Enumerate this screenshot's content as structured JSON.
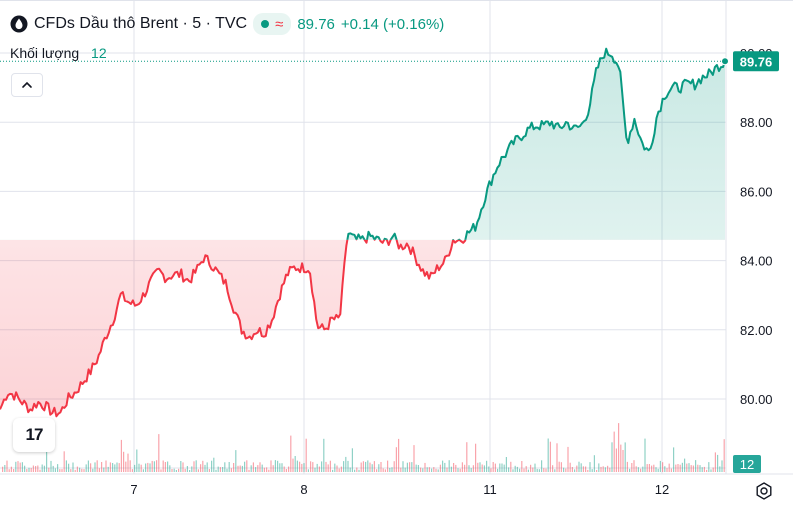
{
  "header": {
    "symbol_title": "CFDs Dầu thô Brent · 5 · TVC",
    "last_price": "89.76",
    "change": "+0.14 (+0.16%)",
    "status_color": "#089981",
    "wave_icon": "≈"
  },
  "volume_legend": {
    "label": "Khối lượng",
    "value": "12"
  },
  "price_axis": {
    "last_price_tag": "89.76",
    "volume_tag": "12",
    "labels": [
      "80.00",
      "82.00",
      "84.00",
      "86.00",
      "88.00",
      "90.00"
    ]
  },
  "time_axis": {
    "labels": [
      "7",
      "8",
      "11",
      "12"
    ]
  },
  "logo_text": "17",
  "colors": {
    "up": "#089981",
    "down": "#f23645",
    "grid": "#e0e3eb",
    "text": "#131722"
  },
  "chart_data": {
    "type": "line",
    "title": "CFDs Dầu thô Brent · 5 · TVC",
    "ylim": [
      78.9,
      90.3
    ],
    "baseline": 84.6,
    "last_value": 89.76,
    "x_ticks": [
      "7",
      "8",
      "11",
      "12"
    ],
    "y_ticks": [
      80,
      82,
      84,
      86,
      88,
      90
    ],
    "series": [
      {
        "values": [
          79.7,
          80.2,
          80.1,
          79.9,
          79.7,
          79.9,
          79.8,
          79.6,
          79.6,
          80.0,
          80.2,
          80.5,
          80.8,
          81.2,
          81.8,
          82.3,
          83.0,
          82.8,
          82.7,
          83.0,
          83.4,
          83.7,
          83.5,
          83.6,
          83.6,
          83.4,
          83.7,
          84.1,
          83.9,
          83.6,
          83.3,
          82.6,
          82.0,
          81.8,
          82.0,
          81.9,
          82.3,
          83.0,
          83.6,
          83.8,
          83.8,
          83.8,
          82.1,
          82.0,
          82.3,
          82.3,
          84.8,
          84.6,
          84.6,
          84.7,
          84.6,
          84.5,
          84.7,
          84.4,
          84.5,
          84.1,
          83.7,
          83.5,
          83.8,
          84.0,
          84.6,
          84.6,
          84.8,
          85.0,
          85.7,
          86.3,
          86.8,
          87.1,
          87.4,
          87.6,
          87.8,
          87.9,
          87.9,
          88.0,
          87.8,
          88.0,
          87.8,
          87.9,
          88.4,
          89.5,
          90.0,
          90.0,
          89.6,
          87.4,
          88.1,
          87.4,
          87.1,
          88.2,
          88.8,
          89.0,
          89.0,
          89.1,
          89.1,
          89.3,
          89.4,
          89.6,
          89.76
        ]
      }
    ],
    "volume": {
      "last": 12
    }
  }
}
